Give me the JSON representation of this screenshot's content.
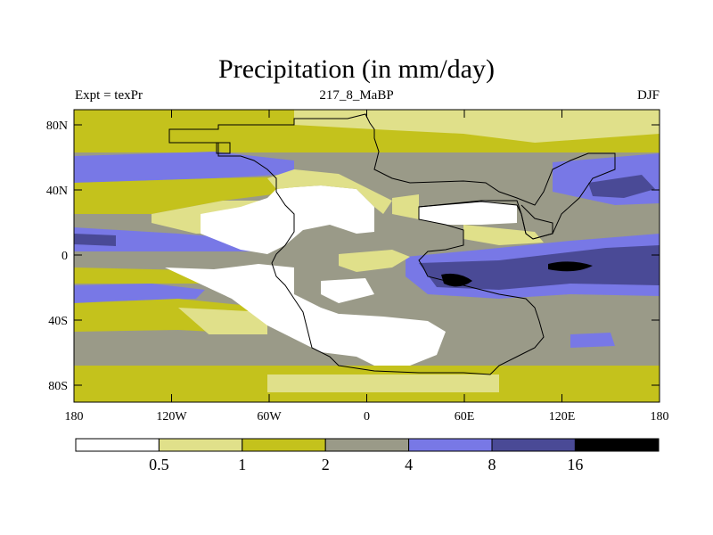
{
  "title": "Precipitation (in mm/day)",
  "subtitle_left": "Expt = texPr",
  "subtitle_center": "217_8_MaBP",
  "subtitle_right": "DJF",
  "colors": {
    "c0": "#ffffff",
    "c1": "#e0e08a",
    "c2": "#c4c21c",
    "c3": "#9a9a88",
    "c4": "#7878e6",
    "c5": "#4a4a96",
    "c6": "#000000"
  },
  "map": {
    "y_ticks": [
      "80N",
      "40N",
      "0",
      "40S",
      "80S"
    ],
    "x_ticks": [
      "180",
      "120W",
      "60W",
      "0",
      "60E",
      "120E",
      "180"
    ],
    "lat_range": [
      -90,
      90
    ],
    "lon_range": [
      -180,
      180
    ]
  },
  "colorbar": {
    "labels": [
      "0.5",
      "1",
      "2",
      "4",
      "8",
      "16"
    ]
  }
}
